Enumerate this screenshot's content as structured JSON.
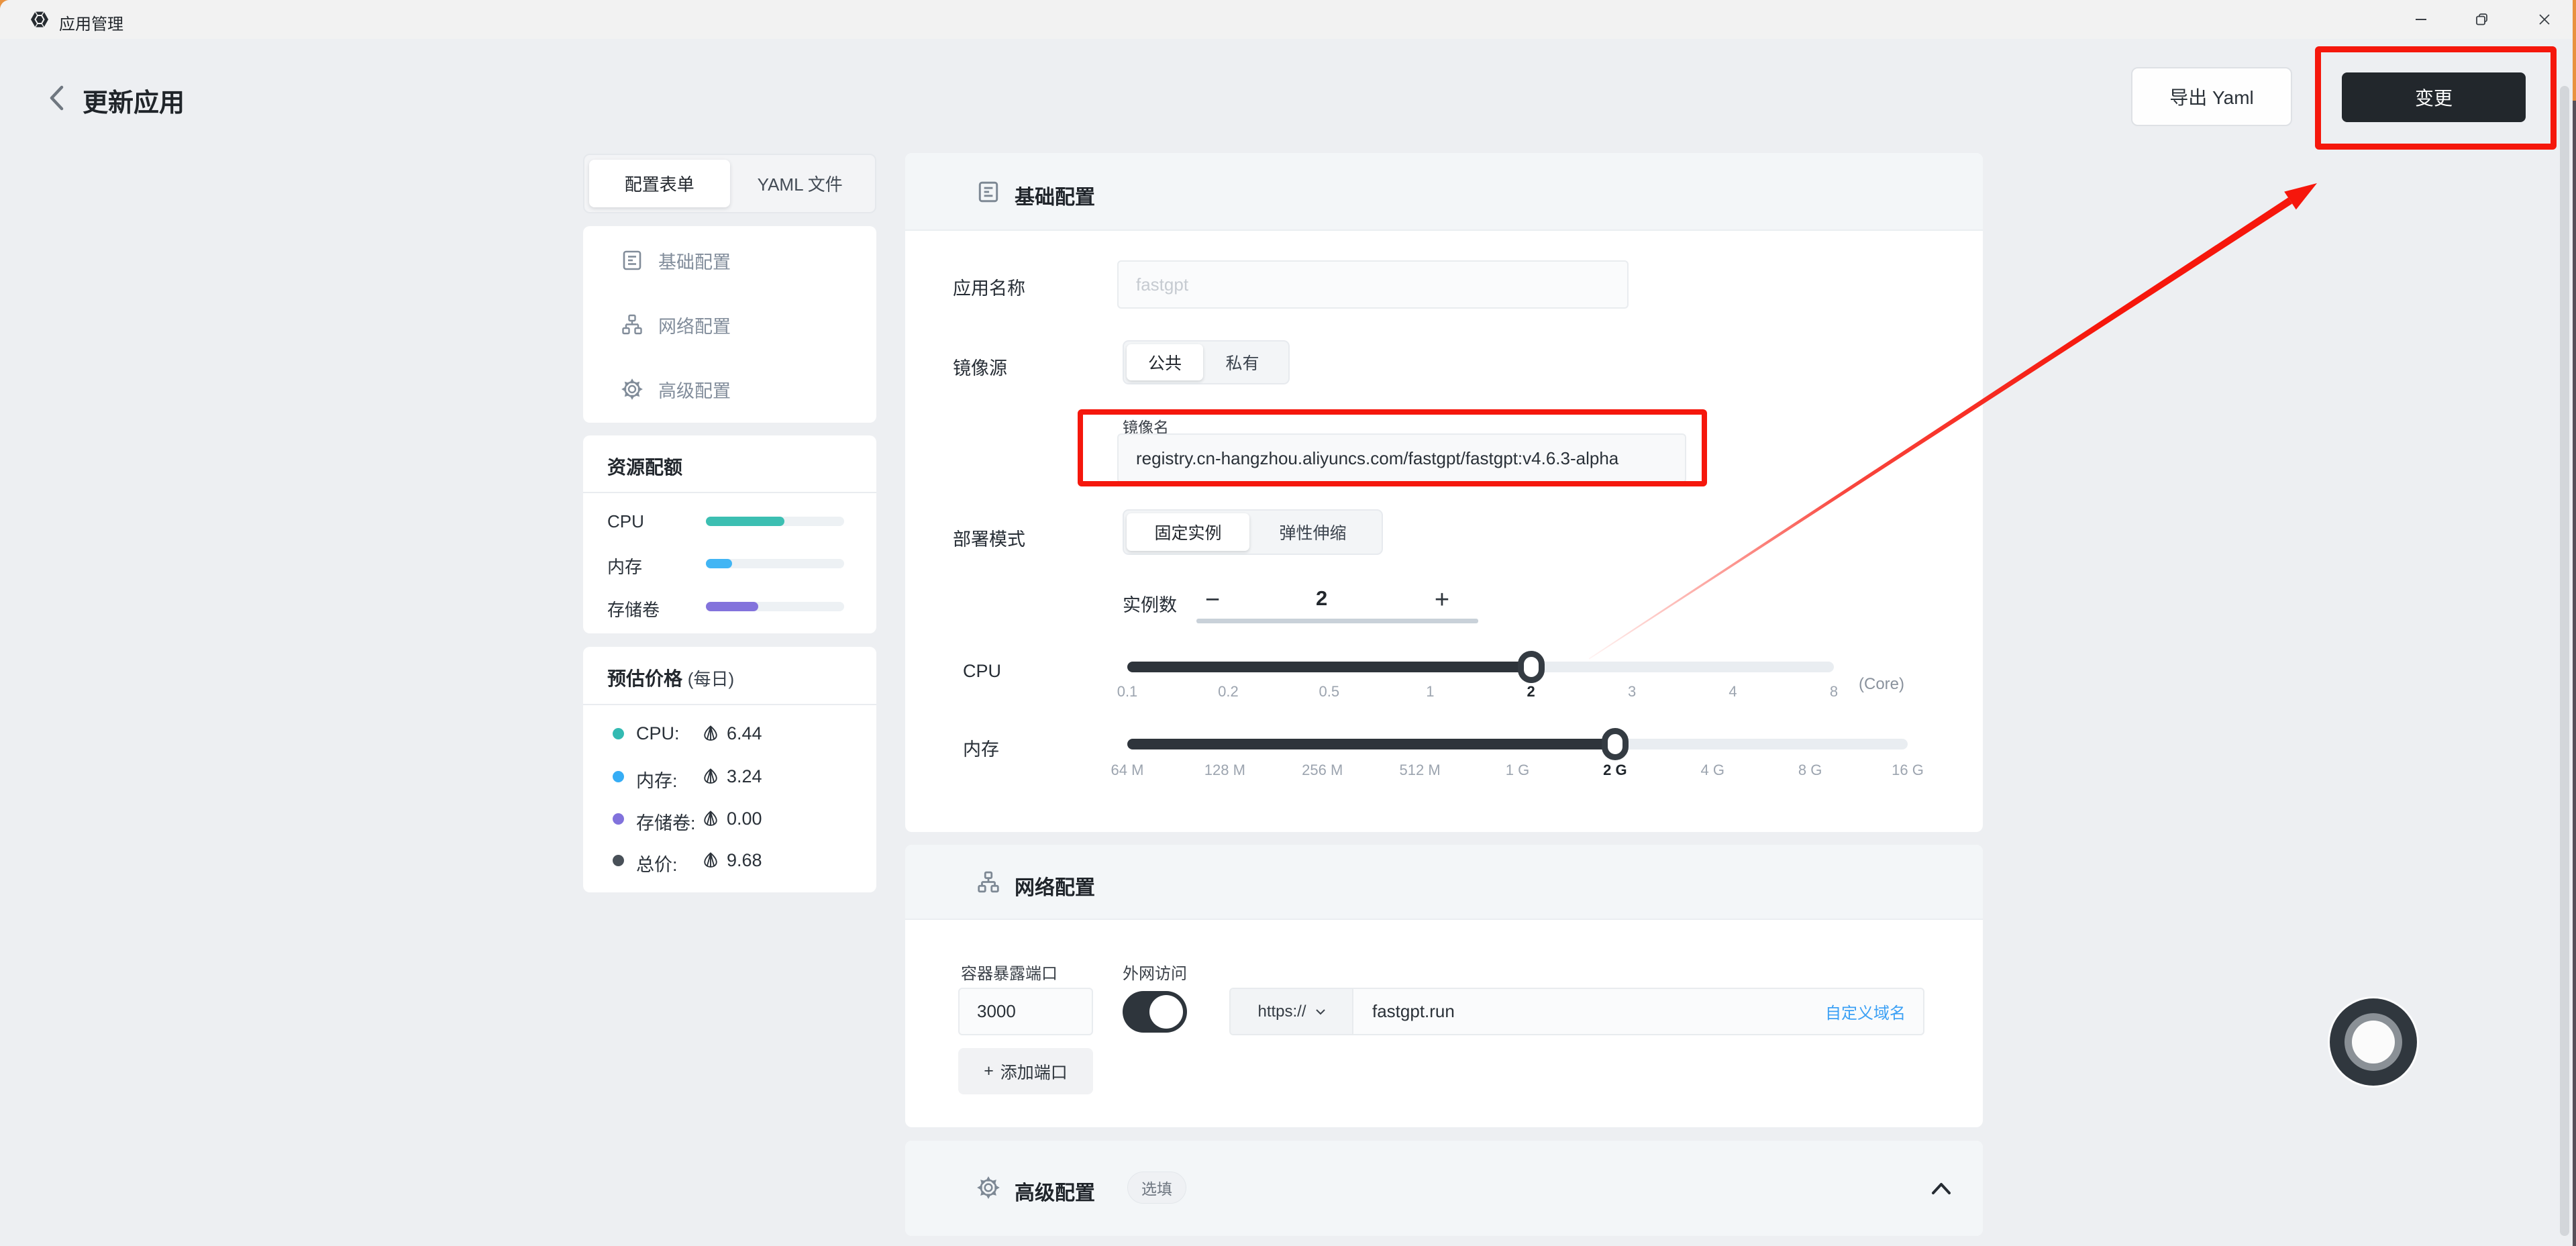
{
  "titlebar": {
    "app_title": "应用管理"
  },
  "header": {
    "title": "更新应用",
    "export_button": "导出 Yaml",
    "change_button": "变更"
  },
  "tabs": {
    "form": "配置表单",
    "yaml": "YAML 文件"
  },
  "sidebar_nav": {
    "items": [
      {
        "label": "基础配置",
        "icon": "document-icon"
      },
      {
        "label": "网络配置",
        "icon": "network-icon"
      },
      {
        "label": "高级配置",
        "icon": "gear-icon"
      }
    ]
  },
  "quota": {
    "title": "资源配额",
    "rows": [
      {
        "label": "CPU",
        "percent": 57,
        "color": "#3CBFB2"
      },
      {
        "label": "内存",
        "percent": 19,
        "color": "#41B5F4"
      },
      {
        "label": "存储卷",
        "percent": 38,
        "color": "#8373DC"
      }
    ]
  },
  "price": {
    "title": "预估价格",
    "subtitle": "(每日)",
    "rows": [
      {
        "label": "CPU:",
        "value": "6.44",
        "dot": "#33BAB2"
      },
      {
        "label": "内存:",
        "value": "3.24",
        "dot": "#36ADF5"
      },
      {
        "label": "存储卷:",
        "value": "0.00",
        "dot": "#8172DC"
      },
      {
        "label": "总价:",
        "value": "9.68",
        "dot": "#485058"
      }
    ]
  },
  "basic": {
    "section_title": "基础配置",
    "app_name_label": "应用名称",
    "app_name_placeholder": "fastgpt",
    "image_source_label": "镜像源",
    "public_label": "公共",
    "private_label": "私有",
    "image_name_label": "镜像名",
    "image_name_value": "registry.cn-hangzhou.aliyuncs.com/fastgpt/fastgpt:v4.6.3-alpha",
    "deploy_mode_label": "部署模式",
    "fixed_label": "固定实例",
    "elastic_label": "弹性伸缩",
    "replicas_label": "实例数",
    "replicas_value": "2",
    "minus": "−",
    "plus": "+",
    "cpu_label": "CPU",
    "cpu_ticks": [
      "0.1",
      "0.2",
      "0.5",
      "1",
      "2",
      "3",
      "4",
      "8"
    ],
    "cpu_selected": "2",
    "cpu_unit": "(Core)",
    "cpu_fill_percent": 57.14,
    "memory_label": "内存",
    "memory_ticks": [
      "64 M",
      "128 M",
      "256 M",
      "512 M",
      "1 G",
      "2 G",
      "4 G",
      "8 G",
      "16 G"
    ],
    "memory_selected": "2 G",
    "memory_fill_percent": 62.5
  },
  "network": {
    "section_title": "网络配置",
    "port_label": "容器暴露端口",
    "port_value": "3000",
    "access_label": "外网访问",
    "access_on": true,
    "protocol": "https://",
    "domain_value": "fastgpt.run",
    "custom_domain_link": "自定义域名",
    "add_port_plus": "+",
    "add_port_label": "添加端口"
  },
  "advanced": {
    "section_title": "高级配置",
    "optional_badge": "选填"
  }
}
